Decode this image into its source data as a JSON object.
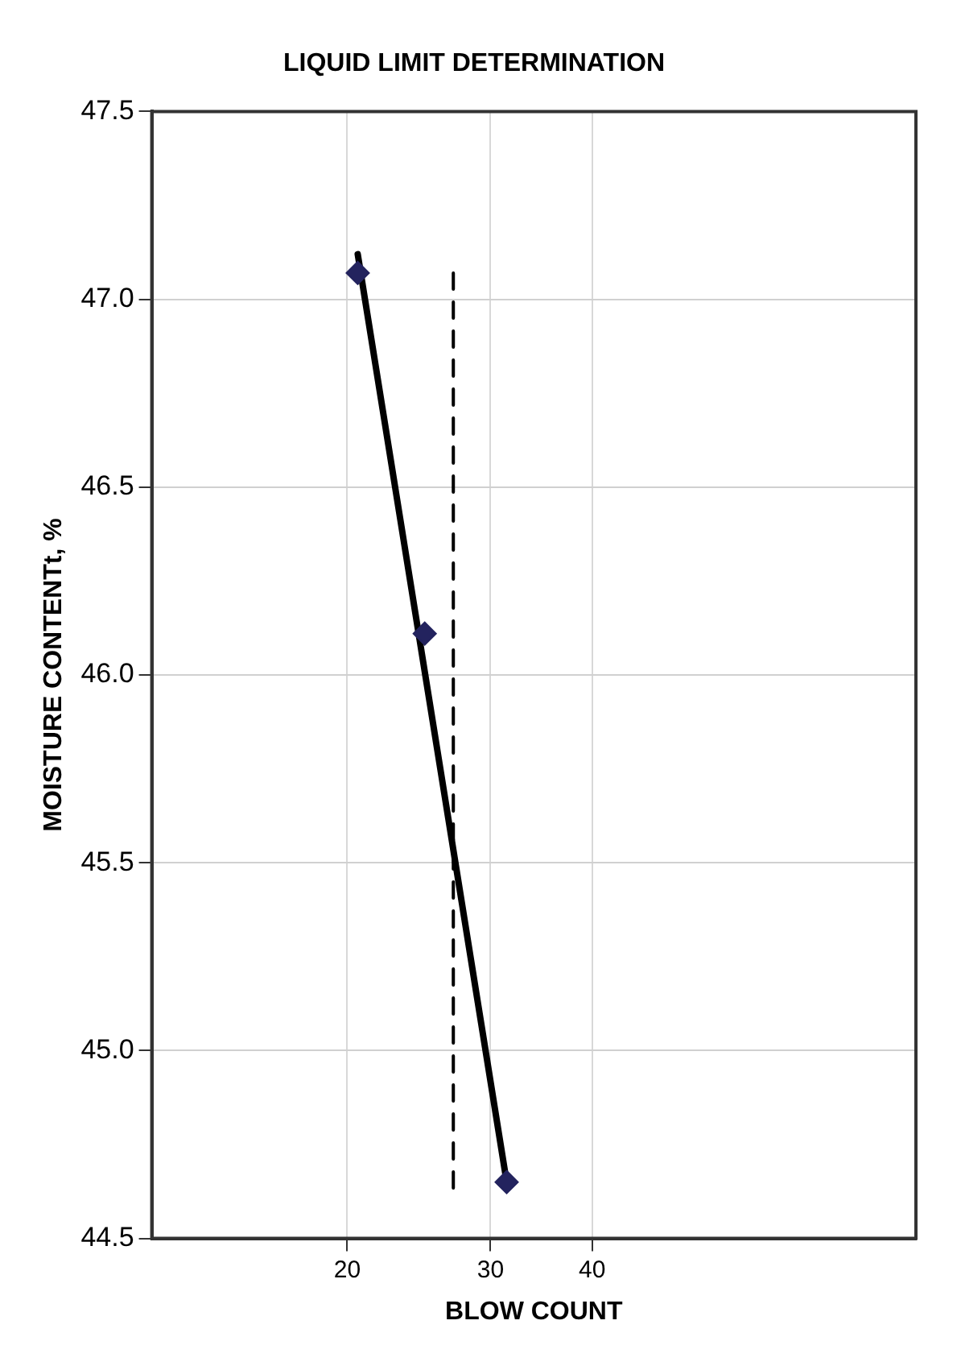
{
  "chart_data": {
    "type": "scatter",
    "title": "LIQUID LIMIT DETERMINATION",
    "xlabel": "BLOW COUNT",
    "ylabel": "MOISTURE CONTENTt, %",
    "log": "x",
    "xlim": [
      11.5,
      100
    ],
    "xticks": [
      20,
      30,
      40
    ],
    "ylim": [
      44.5,
      47.5
    ],
    "yticks": [
      44.5,
      {
        "value": 45,
        "label": "45.0"
      },
      45.5,
      {
        "value": 46,
        "label": "46.0"
      },
      46.5,
      {
        "value": 47,
        "label": "47.0"
      },
      47.5
    ],
    "grid": true,
    "marker": "diamond",
    "series": [
      {
        "type": "scatter",
        "color": "#23235e",
        "x": [
          20.6,
          24.9,
          31.4
        ],
        "values": [
          47.07,
          46.11,
          44.65
        ]
      },
      {
        "type": "line",
        "color": "#000000",
        "marker": "none",
        "x": [
          20.6,
          31.4
        ],
        "values": [
          47.12,
          44.65
        ]
      },
      {
        "type": "line",
        "color": "#000000",
        "marker": "none",
        "line_style": "dashed",
        "x": [
          27,
          27
        ],
        "values": [
          47.07,
          44.62
        ]
      }
    ]
  }
}
